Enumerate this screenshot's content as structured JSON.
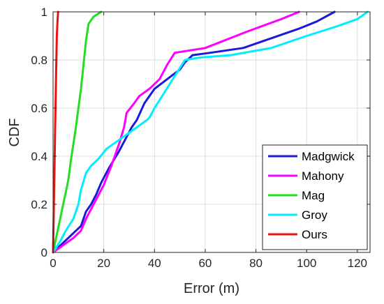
{
  "chart_data": {
    "type": "line",
    "xlabel": "Error (m)",
    "ylabel": "CDF",
    "xlim": [
      0,
      125
    ],
    "ylim": [
      0,
      1
    ],
    "x_ticks": [
      0,
      20,
      40,
      60,
      80,
      100,
      120
    ],
    "x_tick_labels": [
      "0",
      "20",
      "40",
      "60",
      "80",
      "100",
      "120"
    ],
    "y_ticks": [
      0,
      0.2,
      0.4,
      0.6,
      0.8,
      1
    ],
    "y_tick_labels": [
      "0",
      "0.2",
      "0.4",
      "0.6",
      "0.8",
      "1"
    ],
    "grid": true,
    "legend_position": "bottom-right",
    "series": [
      {
        "name": "Madgwick",
        "color": "#1a1adb",
        "x": [
          0,
          3,
          6,
          9,
          11,
          13,
          15,
          17,
          19,
          22,
          26,
          29,
          31,
          33,
          36,
          40,
          45,
          50,
          52,
          55,
          62,
          75,
          86,
          97,
          104,
          111
        ],
        "y": [
          0,
          0.03,
          0.06,
          0.09,
          0.11,
          0.17,
          0.2,
          0.24,
          0.29,
          0.35,
          0.42,
          0.48,
          0.52,
          0.55,
          0.62,
          0.68,
          0.72,
          0.76,
          0.79,
          0.82,
          0.83,
          0.85,
          0.89,
          0.93,
          0.96,
          1.0
        ]
      },
      {
        "name": "Mahony",
        "color": "#ff00ff",
        "x": [
          0,
          4,
          8,
          11,
          13,
          15,
          17,
          20,
          23,
          26,
          28,
          29,
          32,
          34,
          38,
          42,
          45,
          48,
          60,
          77,
          90,
          97
        ],
        "y": [
          0,
          0.03,
          0.06,
          0.09,
          0.14,
          0.18,
          0.22,
          0.28,
          0.36,
          0.45,
          0.52,
          0.58,
          0.62,
          0.65,
          0.68,
          0.72,
          0.78,
          0.83,
          0.85,
          0.92,
          0.97,
          1.0
        ]
      },
      {
        "name": "Mag",
        "color": "#22dd22",
        "x": [
          0,
          1,
          2,
          3,
          4,
          5,
          6,
          7,
          8,
          9,
          10,
          11,
          12,
          13,
          14,
          16,
          19
        ],
        "y": [
          0,
          0.05,
          0.1,
          0.15,
          0.2,
          0.25,
          0.3,
          0.38,
          0.45,
          0.52,
          0.6,
          0.68,
          0.78,
          0.88,
          0.95,
          0.98,
          1.0
        ]
      },
      {
        "name": "Groy",
        "color": "#00eeff",
        "x": [
          0,
          3,
          5,
          8,
          10,
          11,
          13,
          15,
          18,
          21,
          25,
          29,
          33,
          37,
          38,
          40,
          43,
          46,
          49,
          52,
          58,
          70,
          86,
          100,
          112,
          120,
          124
        ],
        "y": [
          0,
          0.05,
          0.09,
          0.14,
          0.2,
          0.26,
          0.33,
          0.36,
          0.39,
          0.43,
          0.46,
          0.49,
          0.52,
          0.55,
          0.56,
          0.6,
          0.65,
          0.7,
          0.75,
          0.8,
          0.81,
          0.82,
          0.85,
          0.9,
          0.94,
          0.97,
          1.0
        ]
      },
      {
        "name": "Ours",
        "color": "#ee1111",
        "x": [
          0,
          0.4,
          0.8,
          1.2,
          1.5,
          1.8,
          2.0
        ],
        "y": [
          0,
          0.25,
          0.5,
          0.75,
          0.9,
          0.97,
          1.0
        ]
      }
    ]
  }
}
